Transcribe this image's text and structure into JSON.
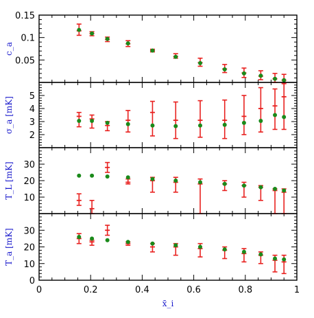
{
  "colors": {
    "errorbar": "#e8201e",
    "point": "#1a8a1a",
    "axis": "#000000",
    "label": "#1a1acc"
  },
  "chart_data": [
    {
      "type": "scatter",
      "panel": 1,
      "ylabel": "c_a",
      "xlim": [
        0,
        1
      ],
      "ylim": [
        0,
        0.15
      ],
      "yticks": [
        "0.05",
        "0.1",
        "0.15"
      ],
      "series": [
        {
          "kind": "points",
          "x": [
            0.155,
            0.205,
            0.265,
            0.345,
            0.44,
            0.53,
            0.625,
            0.72,
            0.795,
            0.86,
            0.915,
            0.95
          ],
          "y": [
            0.117,
            0.109,
            0.097,
            0.087,
            0.071,
            0.057,
            0.043,
            0.029,
            0.02,
            0.015,
            0.008,
            0.005
          ]
        },
        {
          "kind": "errorbars",
          "x": [
            0.155,
            0.205,
            0.265,
            0.345,
            0.44,
            0.53,
            0.625,
            0.72,
            0.795,
            0.86,
            0.915,
            0.95
          ],
          "y": [
            0.115,
            0.109,
            0.096,
            0.086,
            0.071,
            0.058,
            0.044,
            0.03,
            0.021,
            0.014,
            0.008,
            0.005
          ],
          "ylo": [
            0.105,
            0.104,
            0.091,
            0.08,
            0.068,
            0.054,
            0.036,
            0.022,
            0.011,
            0.006,
            0.0,
            -0.004
          ],
          "yhi": [
            0.13,
            0.113,
            0.101,
            0.093,
            0.074,
            0.064,
            0.054,
            0.04,
            0.032,
            0.026,
            0.02,
            0.018
          ]
        }
      ]
    },
    {
      "type": "scatter",
      "panel": 2,
      "ylabel": "σ_a [mK]",
      "xlim": [
        0,
        1
      ],
      "ylim": [
        1,
        6
      ],
      "yticks": [
        "2",
        "3",
        "4",
        "5"
      ],
      "series": [
        {
          "kind": "points",
          "x": [
            0.155,
            0.205,
            0.265,
            0.345,
            0.44,
            0.53,
            0.625,
            0.72,
            0.795,
            0.86,
            0.915,
            0.95
          ],
          "y": [
            3.05,
            3.05,
            2.9,
            2.8,
            2.7,
            2.65,
            2.7,
            2.75,
            2.9,
            3.05,
            3.5,
            3.35
          ]
        },
        {
          "kind": "errorbars",
          "x": [
            0.155,
            0.205,
            0.265,
            0.345,
            0.44,
            0.53,
            0.625,
            0.72,
            0.795,
            0.86,
            0.915,
            0.95
          ],
          "y": [
            3.4,
            3.2,
            2.7,
            3.1,
            3.7,
            3.1,
            3.1,
            3.1,
            3.4,
            4.0,
            4.2,
            4.9
          ],
          "ylo": [
            2.6,
            2.5,
            2.3,
            2.2,
            1.9,
            1.7,
            1.8,
            1.7,
            2.0,
            2.2,
            2.4,
            2.4
          ],
          "yhi": [
            3.7,
            3.5,
            3.0,
            3.85,
            4.55,
            4.5,
            4.6,
            4.65,
            5.0,
            5.6,
            5.5,
            5.9
          ]
        }
      ]
    },
    {
      "type": "scatter",
      "panel": 3,
      "ylabel": "T_L [mK]",
      "xlim": [
        0,
        1
      ],
      "ylim": [
        0,
        40
      ],
      "yticks": [
        "10",
        "20",
        "30"
      ],
      "series": [
        {
          "kind": "points",
          "x": [
            0.155,
            0.205,
            0.265,
            0.345,
            0.44,
            0.53,
            0.625,
            0.72,
            0.795,
            0.86,
            0.915,
            0.95
          ],
          "y": [
            23,
            23,
            22.5,
            22,
            21,
            20,
            19,
            18,
            17,
            16,
            15,
            14
          ]
        },
        {
          "kind": "errorbars",
          "x": [
            0.155,
            0.205,
            0.265,
            0.345,
            0.44,
            0.53,
            0.625,
            0.72,
            0.795,
            0.86,
            0.915,
            0.95
          ],
          "y": [
            8,
            3,
            28,
            19,
            20,
            19,
            18,
            18,
            17,
            16,
            14,
            13
          ],
          "ylo": [
            5,
            0,
            25,
            18,
            13,
            13,
            0,
            14,
            10,
            8,
            0,
            0
          ],
          "yhi": [
            12,
            8,
            31,
            21,
            22,
            22,
            21,
            20,
            19,
            17,
            15,
            15
          ]
        }
      ]
    },
    {
      "type": "scatter",
      "panel": 4,
      "ylabel": "T_a [mK]",
      "xlabel": "x̄_i",
      "xlim": [
        0,
        1
      ],
      "ylim": [
        0,
        40
      ],
      "yticks": [
        "0",
        "10",
        "20",
        "30"
      ],
      "xticks": [
        "0",
        "0.2",
        "0.4",
        "0.6",
        "0.8",
        "1"
      ],
      "series": [
        {
          "kind": "points",
          "x": [
            0.155,
            0.205,
            0.265,
            0.345,
            0.44,
            0.53,
            0.625,
            0.72,
            0.795,
            0.86,
            0.915,
            0.95
          ],
          "y": [
            26,
            25,
            24,
            23,
            22,
            21,
            20,
            18.5,
            17,
            15.5,
            13,
            12.5
          ]
        },
        {
          "kind": "errorbars",
          "x": [
            0.155,
            0.205,
            0.265,
            0.345,
            0.44,
            0.53,
            0.625,
            0.72,
            0.795,
            0.86,
            0.915,
            0.95
          ],
          "y": [
            25,
            23,
            30,
            22,
            20,
            20,
            19,
            18,
            16,
            15,
            12,
            11
          ],
          "ylo": [
            22,
            21,
            27,
            21,
            17,
            15,
            14,
            13,
            11,
            10,
            5,
            4
          ],
          "yhi": [
            28,
            24,
            33,
            23,
            22,
            22,
            22,
            20,
            19,
            17,
            15,
            15
          ]
        }
      ]
    }
  ]
}
